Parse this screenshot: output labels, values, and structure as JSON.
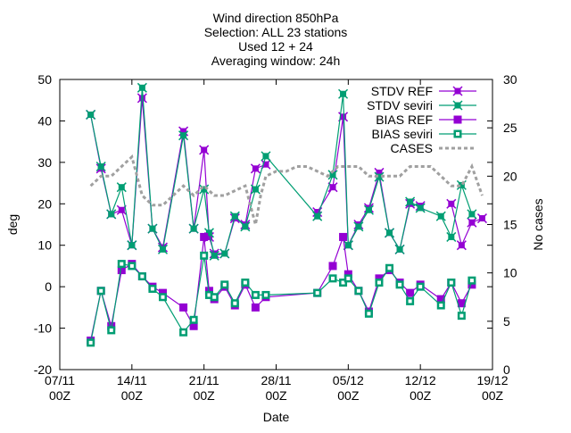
{
  "chart_data": {
    "type": "line",
    "title_lines": [
      "Wind direction 850hPa",
      "Selection: ALL      23 stations",
      "Used 12 + 24",
      "Averaging window: 24h"
    ],
    "xlabel": "Date",
    "ylabel": "deg",
    "y2label": "No cases",
    "xlim": [
      0,
      42
    ],
    "ylim": [
      -20,
      50
    ],
    "y2lim": [
      0,
      30
    ],
    "x_ticks": [
      {
        "pos": 0,
        "line1": "07/11",
        "line2": "00Z"
      },
      {
        "pos": 7,
        "line1": "14/11",
        "line2": "00Z"
      },
      {
        "pos": 14,
        "line1": "21/11",
        "line2": "00Z"
      },
      {
        "pos": 21,
        "line1": "28/11",
        "line2": "00Z"
      },
      {
        "pos": 28,
        "line1": "05/12",
        "line2": "00Z"
      },
      {
        "pos": 35,
        "line1": "12/12",
        "line2": "00Z"
      },
      {
        "pos": 42,
        "line1": "19/12",
        "line2": "00Z"
      }
    ],
    "y_ticks": [
      -20,
      -10,
      0,
      10,
      20,
      30,
      40,
      50
    ],
    "y2_ticks": [
      0,
      5,
      10,
      15,
      20,
      25,
      30
    ],
    "grid": false,
    "legend_position": "top-right",
    "colors": {
      "ref": "#9400d3",
      "seviri": "#009e73",
      "cases": "#a0a0a0"
    },
    "series": [
      {
        "name": "STDV REF",
        "marker": "x-box",
        "color": "#9400d3",
        "x": [
          3,
          4,
          5,
          6,
          7,
          8,
          9,
          10,
          12,
          13,
          14,
          14.5,
          15,
          16,
          17,
          18,
          19,
          20,
          20.5,
          21,
          25,
          26.5,
          27.5,
          28,
          29,
          30,
          31,
          32,
          33,
          34,
          35,
          36,
          38,
          39,
          40,
          41
        ],
        "values": [
          41.5,
          28.5,
          17.5,
          18.5,
          10,
          45.5,
          14,
          9.5,
          37.5,
          14,
          33,
          12,
          8,
          8,
          16.5,
          15,
          28.5,
          29.5,
          null,
          null,
          18,
          24,
          41,
          10,
          15,
          19,
          27.5,
          13,
          9,
          20,
          19.5,
          null,
          20,
          10,
          15.5,
          16.5
        ]
      },
      {
        "name": "STDV seviri",
        "marker": "x-box",
        "color": "#009e73",
        "x": [
          3,
          4,
          5,
          6,
          7,
          8,
          9,
          10,
          12,
          13,
          14,
          14.5,
          15,
          16,
          17,
          18,
          19,
          20,
          25,
          26.5,
          27.5,
          28,
          29,
          30,
          31,
          32,
          33,
          34,
          35,
          37,
          38,
          39,
          40,
          41
        ],
        "values": [
          41.5,
          29,
          17.5,
          24,
          10,
          48,
          14,
          9,
          36.5,
          14,
          23.5,
          13,
          7.5,
          8,
          17,
          14.5,
          23.5,
          31.5,
          17,
          27,
          46.5,
          10,
          14.5,
          18.5,
          26.5,
          13,
          9,
          20.5,
          19,
          17,
          12,
          24.5,
          17.5,
          null
        ]
      },
      {
        "name": "BIAS REF",
        "marker": "box",
        "color": "#9400d3",
        "x": [
          3,
          4,
          5,
          6,
          7,
          8,
          9,
          10,
          12,
          13,
          14,
          14.5,
          15,
          16,
          17,
          18,
          19,
          20,
          25,
          26.5,
          27.5,
          28,
          29,
          30,
          31,
          32,
          33,
          34,
          35,
          37,
          38,
          39,
          40,
          41
        ],
        "values": [
          -13,
          -1,
          -9.5,
          4,
          5.5,
          2.5,
          0,
          -1.5,
          -5,
          -9.5,
          12,
          -1,
          -3,
          0,
          -4.5,
          0.5,
          -5,
          -2.5,
          -1.5,
          5,
          12,
          3,
          -1,
          -6,
          2,
          4,
          1,
          -1.5,
          0.5,
          -3,
          1,
          -4,
          0.5,
          null
        ]
      },
      {
        "name": "BIAS seviri",
        "marker": "box-open",
        "color": "#009e73",
        "x": [
          3,
          4,
          5,
          6,
          7,
          8,
          9,
          10,
          12,
          13,
          14,
          14.5,
          15,
          16,
          17,
          18,
          19,
          20,
          25,
          26.5,
          27.5,
          28,
          29,
          30,
          31,
          32,
          33,
          34,
          35,
          37,
          38,
          39,
          40,
          41
        ],
        "values": [
          -13.5,
          -1,
          -10.5,
          5.5,
          5,
          2.5,
          -0.5,
          -2.5,
          -11,
          -8,
          7.5,
          -2,
          -2.5,
          0.5,
          -4,
          1,
          -2,
          -2,
          -1.5,
          2,
          1,
          2,
          -1,
          -6.5,
          1,
          4.5,
          0.5,
          -3.5,
          0,
          -4.5,
          1,
          -7,
          1.5,
          null
        ]
      },
      {
        "name": "CASES",
        "marker": "none",
        "dashed": true,
        "axis": "y2",
        "color": "#a0a0a0",
        "x": [
          3,
          4,
          5,
          6,
          7,
          8,
          9,
          10,
          11,
          12,
          13,
          14,
          15,
          16,
          17,
          18,
          19,
          19.5,
          20,
          21,
          22,
          23,
          24,
          25,
          26,
          27,
          28,
          29,
          30,
          31,
          32,
          33,
          34,
          35,
          36,
          37,
          38,
          39,
          40,
          41
        ],
        "values": [
          19,
          20,
          20,
          21,
          22,
          18,
          17,
          17,
          18,
          19,
          18,
          19,
          18,
          18,
          18.5,
          19,
          15,
          18,
          20,
          20.5,
          20.5,
          21,
          21,
          20.5,
          20,
          21,
          21,
          21,
          20,
          20,
          20,
          20,
          21,
          21,
          21,
          20,
          19,
          19,
          21,
          18
        ]
      }
    ]
  }
}
